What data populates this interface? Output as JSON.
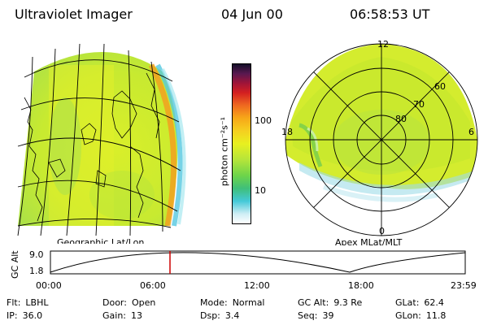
{
  "header": {
    "title": "Ultraviolet Imager",
    "date": "04 Jun 00",
    "time": "06:58:53 UT"
  },
  "left_panel": {
    "caption": "Geographic Lat/Lon"
  },
  "colorbar": {
    "unit_label": "photon cm⁻²s⁻¹",
    "ticks": [
      "100",
      "10"
    ]
  },
  "right_panel": {
    "caption": "Apex MLat/MLT",
    "mlt_labels": {
      "top": "12",
      "left": "18",
      "right": "6",
      "bottom": "0"
    },
    "lat_labels": [
      "60",
      "70",
      "80"
    ]
  },
  "altitude_plot": {
    "ylabel": "GC Alt",
    "yticks": [
      "9.0",
      "1.8"
    ],
    "xticks": [
      "00:00",
      "06:00",
      "12:00",
      "18:00",
      "23:59"
    ],
    "marker_color": "#cc0000"
  },
  "info": {
    "row1": [
      {
        "k": "Flt:",
        "v": "LBHL"
      },
      {
        "k": "Door:",
        "v": "Open"
      },
      {
        "k": "Mode:",
        "v": "Normal"
      },
      {
        "k": "GC Alt:",
        "v": "9.3 Re"
      },
      {
        "k": "GLat:",
        "v": "62.4"
      }
    ],
    "row2": [
      {
        "k": "IP:",
        "v": "36.0"
      },
      {
        "k": "Gain:",
        "v": "13"
      },
      {
        "k": "Dsp:",
        "v": "3.4"
      },
      {
        "k": "Seq:",
        "v": "39"
      },
      {
        "k": "GLon:",
        "v": "11.8"
      }
    ]
  }
}
